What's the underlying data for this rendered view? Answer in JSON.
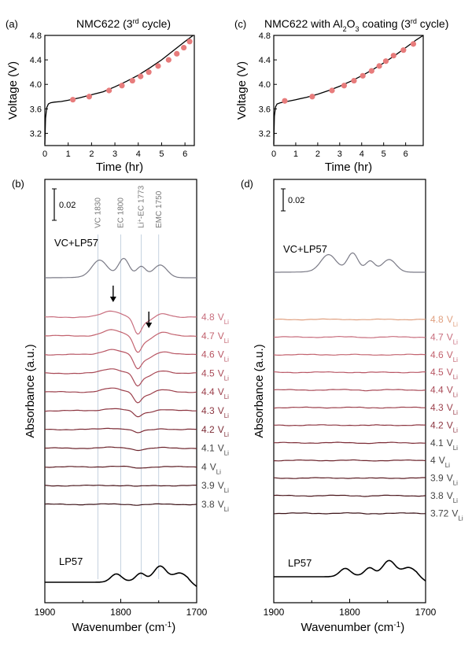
{
  "chart_data": [
    {
      "type": "line",
      "panel": "(a)",
      "title": "NMC622 (3<sup>rd</sup> cycle)",
      "title_parts": [
        "NMC622 (3",
        "rd",
        " cycle)"
      ],
      "xlabel": "Time (hr)",
      "ylabel": "Voltage (V)",
      "xlim": [
        0,
        6.4
      ],
      "ylim": [
        3.0,
        4.8
      ],
      "xticks": [
        "0",
        "1",
        "2",
        "3",
        "4",
        "5",
        "6"
      ],
      "yticks": [
        "3.2",
        "3.6",
        "4.0",
        "4.4",
        "4.8"
      ],
      "curve": {
        "x": [
          0,
          0.03,
          0.08,
          0.15,
          0.25,
          0.4,
          0.7,
          1.0,
          1.5,
          2.0,
          2.5,
          3.0,
          3.5,
          4.0,
          4.5,
          5.0,
          5.5,
          6.0,
          6.35
        ],
        "y": [
          3.02,
          3.45,
          3.62,
          3.68,
          3.7,
          3.71,
          3.72,
          3.74,
          3.78,
          3.83,
          3.88,
          3.96,
          4.05,
          4.15,
          4.27,
          4.4,
          4.55,
          4.7,
          4.8
        ]
      },
      "markers": {
        "x": [
          1.2,
          1.9,
          2.75,
          3.3,
          3.75,
          4.1,
          4.45,
          4.85,
          5.3,
          5.65,
          5.95,
          6.2
        ],
        "y": [
          3.75,
          3.8,
          3.9,
          3.98,
          4.06,
          4.13,
          4.2,
          4.3,
          4.4,
          4.5,
          4.6,
          4.7
        ]
      }
    },
    {
      "type": "line",
      "panel": "(c)",
      "title_parts": [
        "NMC622 with Al",
        "2",
        "O",
        "3",
        " coating  (3",
        "rd",
        " cycle)"
      ],
      "xlabel": "Time (hr)",
      "ylabel": "Voltage (V)",
      "xlim": [
        0,
        6.8
      ],
      "ylim": [
        3.0,
        4.8
      ],
      "xticks": [
        "0",
        "1",
        "2",
        "3",
        "4",
        "5",
        "6"
      ],
      "yticks": [
        "3.2",
        "3.6",
        "4.0",
        "4.4",
        "4.8"
      ],
      "curve": {
        "x": [
          0,
          0.03,
          0.08,
          0.15,
          0.3,
          0.6,
          1.0,
          1.5,
          2.0,
          2.5,
          3.0,
          3.5,
          4.0,
          4.5,
          5.0,
          5.5,
          6.0,
          6.5,
          6.8
        ],
        "y": [
          3.02,
          3.48,
          3.63,
          3.68,
          3.7,
          3.72,
          3.75,
          3.79,
          3.84,
          3.9,
          3.97,
          4.05,
          4.14,
          4.24,
          4.35,
          4.47,
          4.6,
          4.73,
          4.8
        ]
      },
      "markers": {
        "x": [
          0.5,
          1.75,
          2.65,
          3.2,
          3.65,
          4.05,
          4.45,
          4.8,
          5.1,
          5.45,
          5.9,
          6.35
        ],
        "y": [
          3.73,
          3.8,
          3.9,
          3.98,
          4.06,
          4.14,
          4.22,
          4.3,
          4.38,
          4.47,
          4.56,
          4.66
        ]
      }
    },
    {
      "type": "line",
      "panel": "(b)",
      "xlabel_parts": [
        "Wavenumber (cm",
        "-1",
        ")"
      ],
      "ylabel": "Absorbance (a.u.)",
      "xlim": [
        1900,
        1700
      ],
      "xticks": [
        "1900",
        "1800",
        "1700"
      ],
      "scale_bar": "0.02",
      "reference_lines": [
        {
          "name": "VC",
          "value": "1830",
          "x": 1830
        },
        {
          "name": "EC",
          "value": "1800",
          "x": 1800
        },
        {
          "name": "Li<sup>+</sup>-EC",
          "label_parts": [
            "Li",
            "+",
            "-EC"
          ],
          "value": "1773",
          "x": 1773
        },
        {
          "name": "EMC",
          "value": "1750",
          "x": 1750
        }
      ],
      "top_label": "VC+LP57",
      "bottom_label": "LP57",
      "voltage_labels": [
        {
          "num": "4.8",
          "sub": "Li"
        },
        {
          "num": "4.7",
          "sub": "Li"
        },
        {
          "num": "4.6",
          "sub": "Li"
        },
        {
          "num": "4.5",
          "sub": "Li"
        },
        {
          "num": "4.4",
          "sub": "Li"
        },
        {
          "num": "4.3",
          "sub": "Li"
        },
        {
          "num": "4.2",
          "sub": "Li"
        },
        {
          "num": "4.1",
          "sub": "Li"
        },
        {
          "num": "4",
          "sub": "Li"
        },
        {
          "num": "3.9",
          "sub": "Li"
        },
        {
          "num": "3.8",
          "sub": "Li"
        }
      ],
      "unit_prefix": "V",
      "trace_colors": [
        "#c86e7e",
        "#c3636f",
        "#b85664",
        "#a94a57",
        "#9c404c",
        "#8c3540",
        "#7c2c36",
        "#6c242c",
        "#5c1d24",
        "#4a161c",
        "#3a1116"
      ],
      "label_colors": [
        "#c86e7e",
        "#c3636f",
        "#b85664",
        "#a94a57",
        "#9c404c",
        "#8c3540",
        "#7c2c36",
        "#444444",
        "#444444",
        "#444444",
        "#444444"
      ],
      "arrows_at": [
        1810,
        1763
      ],
      "feature_strength": [
        1.0,
        0.95,
        0.85,
        0.75,
        0.6,
        0.35,
        0.2,
        0.12,
        0.08,
        0.05,
        0.03
      ]
    },
    {
      "type": "line",
      "panel": "(d)",
      "xlabel_parts": [
        "Wavenumber (cm",
        "-1",
        ")"
      ],
      "ylabel": "Absorbance (a.u.)",
      "xlim": [
        1900,
        1700
      ],
      "xticks": [
        "1900",
        "1800",
        "1700"
      ],
      "scale_bar": "0.02",
      "top_label": "VC+LP57",
      "bottom_label": "LP57",
      "voltage_labels": [
        {
          "num": "4.8",
          "sub": "Li"
        },
        {
          "num": "4.7",
          "sub": "Li"
        },
        {
          "num": "4.6",
          "sub": "Li"
        },
        {
          "num": "4.5",
          "sub": "Li"
        },
        {
          "num": "4.4",
          "sub": "Li"
        },
        {
          "num": "4.3",
          "sub": "Li"
        },
        {
          "num": "4.2",
          "sub": "Li"
        },
        {
          "num": "4.1",
          "sub": "Li"
        },
        {
          "num": "4",
          "sub": "Li"
        },
        {
          "num": "3.9",
          "sub": "Li"
        },
        {
          "num": "3.8",
          "sub": "Li"
        },
        {
          "num": "3.72",
          "sub": "Li"
        }
      ],
      "unit_prefix": "V",
      "trace_colors": [
        "#e0a080",
        "#c86e7e",
        "#c3636f",
        "#b85664",
        "#a94a57",
        "#9c404c",
        "#8c3540",
        "#7c2c36",
        "#6c242c",
        "#5c1d24",
        "#4a161c",
        "#3a1116"
      ],
      "label_colors": [
        "#e0a080",
        "#c86e7e",
        "#c3636f",
        "#b85664",
        "#a94a57",
        "#9c404c",
        "#8c3540",
        "#444444",
        "#444444",
        "#444444",
        "#444444",
        "#444444"
      ]
    }
  ],
  "colors": {
    "marker": "#e77c7c",
    "axis": "#000000",
    "reference_line": "#b8c8d8",
    "label_gray": "#777777",
    "top_trace": "#7a7a86"
  }
}
